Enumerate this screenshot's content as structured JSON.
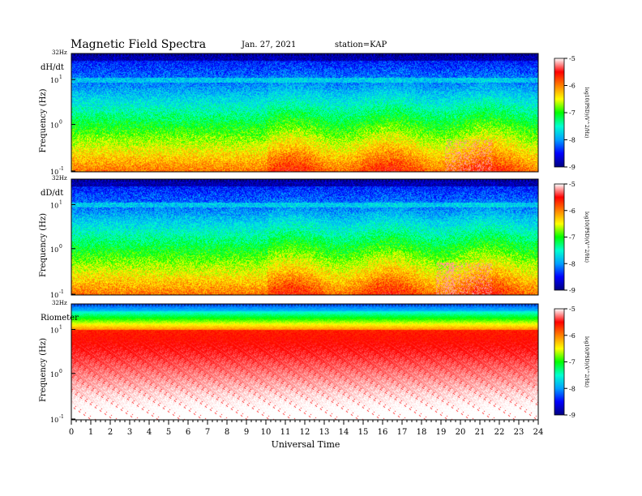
{
  "header": {
    "title": "Magnetic  Field  Spectra",
    "date": "Jan. 27, 2021",
    "station": "station=KAP"
  },
  "chart_data": [
    {
      "type": "heatmap",
      "panel_label": "dH/dt",
      "ylabel": "Frequency  (Hz)",
      "y_scale": "log",
      "y_ticks": [
        "10",
        "10",
        "10"
      ],
      "y_exponents": [
        "-1",
        "0",
        "1"
      ],
      "y_top_label": "32Hz",
      "x_range": [
        0,
        24
      ],
      "colorbar": {
        "ticks": [
          "-5",
          "-6",
          "-7",
          "-8",
          "-9"
        ],
        "label": "log10(PSD)(V^2/Hz)"
      }
    },
    {
      "type": "heatmap",
      "panel_label": "dD/dt",
      "ylabel": "Frequency  (Hz)",
      "y_scale": "log",
      "y_ticks": [
        "10",
        "10",
        "10"
      ],
      "y_exponents": [
        "-1",
        "0",
        "1"
      ],
      "y_top_label": "32Hz",
      "x_range": [
        0,
        24
      ],
      "colorbar": {
        "ticks": [
          "-5",
          "-6",
          "-7",
          "-8",
          "-9"
        ],
        "label": "log10(PSD)(V^2/Hz)"
      }
    },
    {
      "type": "heatmap",
      "panel_label": "Riometer",
      "ylabel": "Frequency  (Hz)",
      "y_scale": "log",
      "y_ticks": [
        "10",
        "10",
        "10"
      ],
      "y_exponents": [
        "-1",
        "0",
        "1"
      ],
      "y_top_label": "32Hz",
      "x_range": [
        0,
        24
      ],
      "colorbar": {
        "ticks": [
          "-5",
          "-6",
          "-7",
          "-8",
          "-9"
        ],
        "label": "log10(PSD)(V^2/Hz)"
      }
    }
  ],
  "x_axis": {
    "ticks": [
      "0",
      "1",
      "2",
      "3",
      "4",
      "5",
      "6",
      "7",
      "8",
      "9",
      "10",
      "11",
      "12",
      "13",
      "14",
      "15",
      "16",
      "17",
      "18",
      "19",
      "20",
      "21",
      "22",
      "23",
      "24"
    ],
    "label": "Universal  Time"
  },
  "colorbar_colors": [
    "#000080",
    "#0000ff",
    "#00a0ff",
    "#00ffd0",
    "#00ff00",
    "#ffff00",
    "#ff8000",
    "#ff0000",
    "#ffffff"
  ]
}
